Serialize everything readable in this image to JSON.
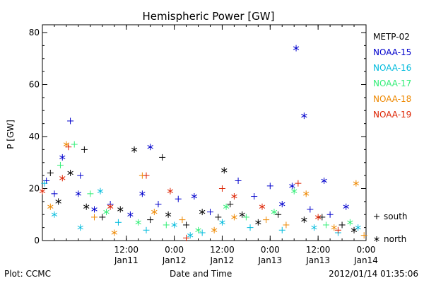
{
  "chart_data": {
    "type": "scatter",
    "title": "Hemispheric Power [GW]",
    "ylabel": "P [GW]",
    "xlabel": "Date and Time",
    "ylim": [
      0,
      83
    ],
    "yticks": [
      0,
      20,
      40,
      60,
      80
    ],
    "xlim": [
      "2012-01-10T15:00",
      "2012-01-14T00:00"
    ],
    "xticks": [
      {
        "time": "2012-01-11T12:00",
        "top": "12:00",
        "bottom": "Jan11"
      },
      {
        "time": "2012-01-12T00:00",
        "top": "0:00",
        "bottom": "Jan12"
      },
      {
        "time": "2012-01-12T12:00",
        "top": "12:00",
        "bottom": "Jan12"
      },
      {
        "time": "2012-01-13T00:00",
        "top": "0:00",
        "bottom": "Jan13"
      },
      {
        "time": "2012-01-13T12:00",
        "top": "12:00",
        "bottom": "Jan13"
      },
      {
        "time": "2012-01-14T00:00",
        "top": "0:00",
        "bottom": "Jan14"
      }
    ],
    "legend_position": "right",
    "marker_legend": [
      {
        "symbol": "+",
        "label": "south"
      },
      {
        "symbol": "*",
        "label": "north"
      }
    ],
    "series": [
      {
        "name": "METP-02",
        "color": "#000000",
        "points": [
          {
            "t": "2012-01-10T17:00",
            "y": 26,
            "m": "plus"
          },
          {
            "t": "2012-01-10T19:00",
            "y": 15,
            "m": "star"
          },
          {
            "t": "2012-01-10T22:00",
            "y": 26,
            "m": "star"
          },
          {
            "t": "2012-01-11T01:30",
            "y": 35,
            "m": "plus"
          },
          {
            "t": "2012-01-11T02:00",
            "y": 13,
            "m": "star"
          },
          {
            "t": "2012-01-11T06:00",
            "y": 9,
            "m": "plus"
          },
          {
            "t": "2012-01-11T10:30",
            "y": 12,
            "m": "star"
          },
          {
            "t": "2012-01-11T14:00",
            "y": 35,
            "m": "star"
          },
          {
            "t": "2012-01-11T18:00",
            "y": 8,
            "m": "plus"
          },
          {
            "t": "2012-01-11T21:00",
            "y": 32,
            "m": "plus"
          },
          {
            "t": "2012-01-11T22:30",
            "y": 10,
            "m": "star"
          },
          {
            "t": "2012-01-12T03:00",
            "y": 6,
            "m": "plus"
          },
          {
            "t": "2012-01-12T07:00",
            "y": 11,
            "m": "star"
          },
          {
            "t": "2012-01-12T11:00",
            "y": 9,
            "m": "plus"
          },
          {
            "t": "2012-01-12T12:30",
            "y": 27,
            "m": "star"
          },
          {
            "t": "2012-01-12T14:00",
            "y": 14,
            "m": "plus"
          },
          {
            "t": "2012-01-12T17:00",
            "y": 10,
            "m": "star"
          },
          {
            "t": "2012-01-12T21:00",
            "y": 7,
            "m": "star"
          },
          {
            "t": "2012-01-13T02:00",
            "y": 10,
            "m": "plus"
          },
          {
            "t": "2012-01-13T08:30",
            "y": 8,
            "m": "star"
          },
          {
            "t": "2012-01-13T13:00",
            "y": 9,
            "m": "plus"
          },
          {
            "t": "2012-01-13T18:00",
            "y": 6,
            "m": "plus"
          },
          {
            "t": "2012-01-13T21:00",
            "y": 4,
            "m": "star"
          }
        ]
      },
      {
        "name": "NOAA-15",
        "color": "#0000cc",
        "points": [
          {
            "t": "2012-01-10T16:00",
            "y": 23,
            "m": "plus"
          },
          {
            "t": "2012-01-10T18:00",
            "y": 18,
            "m": "plus"
          },
          {
            "t": "2012-01-10T20:00",
            "y": 32,
            "m": "star"
          },
          {
            "t": "2012-01-10T22:00",
            "y": 46,
            "m": "plus"
          },
          {
            "t": "2012-01-11T00:00",
            "y": 18,
            "m": "star"
          },
          {
            "t": "2012-01-11T00:30",
            "y": 25,
            "m": "plus"
          },
          {
            "t": "2012-01-11T04:00",
            "y": 12,
            "m": "star"
          },
          {
            "t": "2012-01-11T08:00",
            "y": 14,
            "m": "plus"
          },
          {
            "t": "2012-01-11T13:00",
            "y": 10,
            "m": "star"
          },
          {
            "t": "2012-01-11T16:00",
            "y": 18,
            "m": "star"
          },
          {
            "t": "2012-01-11T18:00",
            "y": 36,
            "m": "star"
          },
          {
            "t": "2012-01-11T20:00",
            "y": 14,
            "m": "plus"
          },
          {
            "t": "2012-01-12T01:00",
            "y": 16,
            "m": "plus"
          },
          {
            "t": "2012-01-12T05:00",
            "y": 17,
            "m": "star"
          },
          {
            "t": "2012-01-12T09:00",
            "y": 11,
            "m": "plus"
          },
          {
            "t": "2012-01-12T16:00",
            "y": 23,
            "m": "plus"
          },
          {
            "t": "2012-01-12T20:00",
            "y": 17,
            "m": "plus"
          },
          {
            "t": "2012-01-13T00:00",
            "y": 21,
            "m": "plus"
          },
          {
            "t": "2012-01-13T03:00",
            "y": 14,
            "m": "star"
          },
          {
            "t": "2012-01-13T05:30",
            "y": 21,
            "m": "star"
          },
          {
            "t": "2012-01-13T06:30",
            "y": 74,
            "m": "star"
          },
          {
            "t": "2012-01-13T08:30",
            "y": 48,
            "m": "star"
          },
          {
            "t": "2012-01-13T10:00",
            "y": 12,
            "m": "plus"
          },
          {
            "t": "2012-01-13T13:30",
            "y": 23,
            "m": "star"
          },
          {
            "t": "2012-01-13T15:00",
            "y": 10,
            "m": "plus"
          },
          {
            "t": "2012-01-13T19:00",
            "y": 13,
            "m": "star"
          }
        ]
      },
      {
        "name": "NOAA-16",
        "color": "#00bbdd",
        "points": [
          {
            "t": "2012-01-10T15:30",
            "y": 22,
            "m": "plus"
          },
          {
            "t": "2012-01-10T18:00",
            "y": 10,
            "m": "star"
          },
          {
            "t": "2012-01-11T00:30",
            "y": 5,
            "m": "star"
          },
          {
            "t": "2012-01-11T05:30",
            "y": 19,
            "m": "star"
          },
          {
            "t": "2012-01-11T10:00",
            "y": 7,
            "m": "plus"
          },
          {
            "t": "2012-01-11T17:00",
            "y": 4,
            "m": "plus"
          },
          {
            "t": "2012-01-12T00:00",
            "y": 6,
            "m": "star"
          },
          {
            "t": "2012-01-12T04:00",
            "y": 2,
            "m": "star"
          },
          {
            "t": "2012-01-12T07:00",
            "y": 3,
            "m": "plus"
          },
          {
            "t": "2012-01-12T12:00",
            "y": 7,
            "m": "star"
          },
          {
            "t": "2012-01-12T19:00",
            "y": 5,
            "m": "plus"
          },
          {
            "t": "2012-01-13T03:00",
            "y": 4,
            "m": "plus"
          },
          {
            "t": "2012-01-13T11:00",
            "y": 5,
            "m": "star"
          },
          {
            "t": "2012-01-13T17:00",
            "y": 3,
            "m": "plus"
          },
          {
            "t": "2012-01-13T22:00",
            "y": 5,
            "m": "star"
          }
        ]
      },
      {
        "name": "NOAA-17",
        "color": "#33ee77",
        "points": [
          {
            "t": "2012-01-10T19:30",
            "y": 29,
            "m": "plus"
          },
          {
            "t": "2012-01-10T23:00",
            "y": 37,
            "m": "plus"
          },
          {
            "t": "2012-01-11T03:00",
            "y": 18,
            "m": "plus"
          },
          {
            "t": "2012-01-11T07:00",
            "y": 11,
            "m": "star"
          },
          {
            "t": "2012-01-11T15:00",
            "y": 7,
            "m": "star"
          },
          {
            "t": "2012-01-11T22:00",
            "y": 6,
            "m": "plus"
          },
          {
            "t": "2012-01-12T06:00",
            "y": 4,
            "m": "star"
          },
          {
            "t": "2012-01-12T13:00",
            "y": 13,
            "m": "star"
          },
          {
            "t": "2012-01-12T18:00",
            "y": 9,
            "m": "plus"
          },
          {
            "t": "2012-01-13T01:00",
            "y": 11,
            "m": "star"
          },
          {
            "t": "2012-01-13T06:00",
            "y": 19,
            "m": "star"
          },
          {
            "t": "2012-01-13T14:00",
            "y": 6,
            "m": "plus"
          },
          {
            "t": "2012-01-13T20:00",
            "y": 7,
            "m": "star"
          }
        ]
      },
      {
        "name": "NOAA-18",
        "color": "#ee8800",
        "points": [
          {
            "t": "2012-01-10T17:00",
            "y": 13,
            "m": "star"
          },
          {
            "t": "2012-01-10T21:00",
            "y": 37,
            "m": "star"
          },
          {
            "t": "2012-01-11T04:00",
            "y": 9,
            "m": "plus"
          },
          {
            "t": "2012-01-11T09:00",
            "y": 3,
            "m": "star"
          },
          {
            "t": "2012-01-11T16:00",
            "y": 25,
            "m": "plus"
          },
          {
            "t": "2012-01-11T19:00",
            "y": 11,
            "m": "star"
          },
          {
            "t": "2012-01-12T02:00",
            "y": 8,
            "m": "plus"
          },
          {
            "t": "2012-01-12T10:00",
            "y": 4,
            "m": "star"
          },
          {
            "t": "2012-01-12T15:00",
            "y": 9,
            "m": "star"
          },
          {
            "t": "2012-01-12T23:00",
            "y": 8,
            "m": "plus"
          },
          {
            "t": "2012-01-13T04:00",
            "y": 6,
            "m": "plus"
          },
          {
            "t": "2012-01-13T09:00",
            "y": 18,
            "m": "star"
          },
          {
            "t": "2012-01-13T16:00",
            "y": 5,
            "m": "star"
          },
          {
            "t": "2012-01-13T21:30",
            "y": 22,
            "m": "star"
          },
          {
            "t": "2012-01-13T23:30",
            "y": 2,
            "m": "plus"
          }
        ]
      },
      {
        "name": "NOAA-19",
        "color": "#dd2200",
        "points": [
          {
            "t": "2012-01-10T15:00",
            "y": 19,
            "m": "star"
          },
          {
            "t": "2012-01-10T20:00",
            "y": 24,
            "m": "star"
          },
          {
            "t": "2012-01-10T21:30",
            "y": 36,
            "m": "plus"
          },
          {
            "t": "2012-01-11T08:00",
            "y": 13,
            "m": "star"
          },
          {
            "t": "2012-01-11T17:00",
            "y": 25,
            "m": "plus"
          },
          {
            "t": "2012-01-11T23:00",
            "y": 19,
            "m": "star"
          },
          {
            "t": "2012-01-12T03:00",
            "y": 1,
            "m": "plus"
          },
          {
            "t": "2012-01-12T12:00",
            "y": 20,
            "m": "plus"
          },
          {
            "t": "2012-01-12T15:00",
            "y": 17,
            "m": "star"
          },
          {
            "t": "2012-01-12T22:00",
            "y": 13,
            "m": "star"
          },
          {
            "t": "2012-01-13T07:00",
            "y": 22,
            "m": "plus"
          },
          {
            "t": "2012-01-13T12:00",
            "y": 9,
            "m": "star"
          },
          {
            "t": "2012-01-13T17:00",
            "y": 4,
            "m": "plus"
          }
        ]
      }
    ]
  },
  "footer": {
    "plot_credit": "Plot: CCMC",
    "timestamp": "2012/01/14 01:35:06"
  }
}
